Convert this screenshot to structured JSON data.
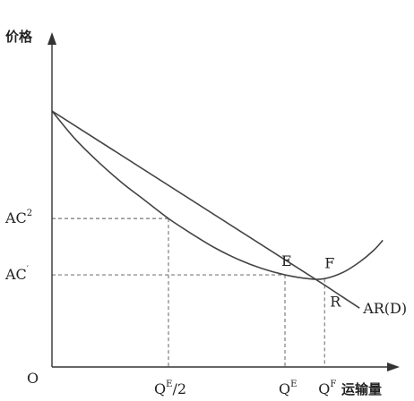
{
  "chart_data": {
    "type": "line",
    "title": "",
    "ylabel": "价格",
    "xlabel": "运输量",
    "origin_label": "O",
    "x_ticks": [
      {
        "id": "qe-half",
        "base": "Q",
        "sup": "E",
        "suffix": "/2",
        "value": 0.5
      },
      {
        "id": "qe",
        "base": "Q",
        "sup": "E",
        "suffix": "",
        "value": 1.0
      },
      {
        "id": "qf",
        "base": "Q",
        "sup": "F",
        "suffix": "",
        "value": 1.17
      }
    ],
    "y_ticks": [
      {
        "id": "ac2",
        "base": "AC",
        "sup": "2",
        "value": 0.58
      },
      {
        "id": "ac1",
        "base": "AC",
        "sup": "′",
        "value": 0.36
      }
    ],
    "xlim": [
      0,
      1.45
    ],
    "ylim": [
      0,
      1.26
    ],
    "series": [
      {
        "name": "AR(D)",
        "kind": "demand",
        "x": [
          0,
          1.17,
          1.32
        ],
        "y": [
          1.0,
          0.32,
          0.23
        ]
      },
      {
        "name": "",
        "kind": "average-cost",
        "x": [
          0,
          0.1,
          0.2,
          0.3,
          0.4,
          0.5,
          0.6,
          0.7,
          0.8,
          0.9,
          1.0,
          1.1,
          1.17,
          1.25,
          1.32,
          1.38,
          1.42
        ],
        "y": [
          1.0,
          0.89,
          0.8,
          0.72,
          0.65,
          0.58,
          0.52,
          0.465,
          0.42,
          0.385,
          0.36,
          0.345,
          0.345,
          0.37,
          0.41,
          0.455,
          0.495
        ]
      }
    ],
    "points": [
      {
        "id": "point-e",
        "label": "E",
        "x": 1.0,
        "y": 0.36
      },
      {
        "id": "point-f",
        "label": "F",
        "x": 1.17,
        "y": 0.345
      },
      {
        "id": "point-r",
        "label": "R",
        "x": 1.17,
        "y": 0.32
      }
    ],
    "guides": [
      {
        "from_x": 0,
        "from_y": 0.58,
        "to_x": 0.5,
        "to_y": 0.58
      },
      {
        "from_x": 0.5,
        "from_y": 0.58,
        "to_x": 0.5,
        "to_y": 0
      },
      {
        "from_x": 0,
        "from_y": 0.36,
        "to_x": 1.0,
        "to_y": 0.36
      },
      {
        "from_x": 1.0,
        "from_y": 0.36,
        "to_x": 1.0,
        "to_y": 0
      },
      {
        "from_x": 1.17,
        "from_y": 0.345,
        "to_x": 1.17,
        "to_y": 0
      }
    ],
    "grid": false,
    "legend": "none"
  }
}
